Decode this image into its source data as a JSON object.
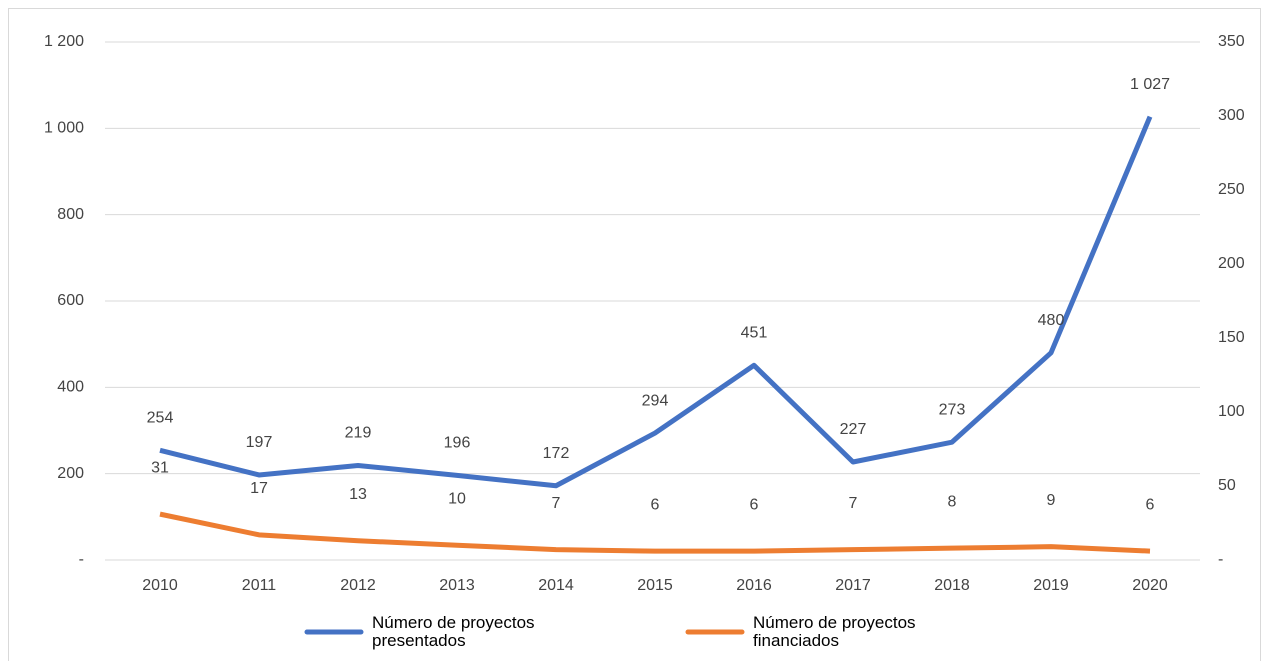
{
  "chart_data": {
    "type": "line",
    "categories": [
      "2010",
      "2011",
      "2012",
      "2013",
      "2014",
      "2015",
      "2016",
      "2017",
      "2018",
      "2019",
      "2020"
    ],
    "series": [
      {
        "name": "Número de proyectos presentados",
        "color": "#4472c4",
        "values": [
          254,
          197,
          219,
          196,
          172,
          294,
          451,
          227,
          273,
          480,
          1027
        ],
        "value_labels": [
          "254",
          "197",
          "219",
          "196",
          "172",
          "294",
          "451",
          "227",
          "273",
          "480",
          "1 027"
        ]
      },
      {
        "name": "Número de proyectos financiados",
        "color": "#ed7d31",
        "axis": "y2",
        "values": [
          31,
          17,
          13,
          10,
          7,
          6,
          6,
          7,
          8,
          9,
          6
        ]
      }
    ],
    "ylim": [
      0,
      1200
    ],
    "yticks": [
      {
        "value": 0,
        "label": "-"
      },
      200,
      400,
      600,
      800,
      {
        "value": 1000,
        "label": "1 000"
      },
      {
        "value": 1200,
        "label": "1 200"
      }
    ],
    "y2lim": [
      0,
      350
    ],
    "y2ticks": [
      {
        "value": 0,
        "label": "-"
      },
      50,
      100,
      150,
      200,
      250,
      300,
      350
    ],
    "grid": true,
    "legend": "bottom"
  }
}
